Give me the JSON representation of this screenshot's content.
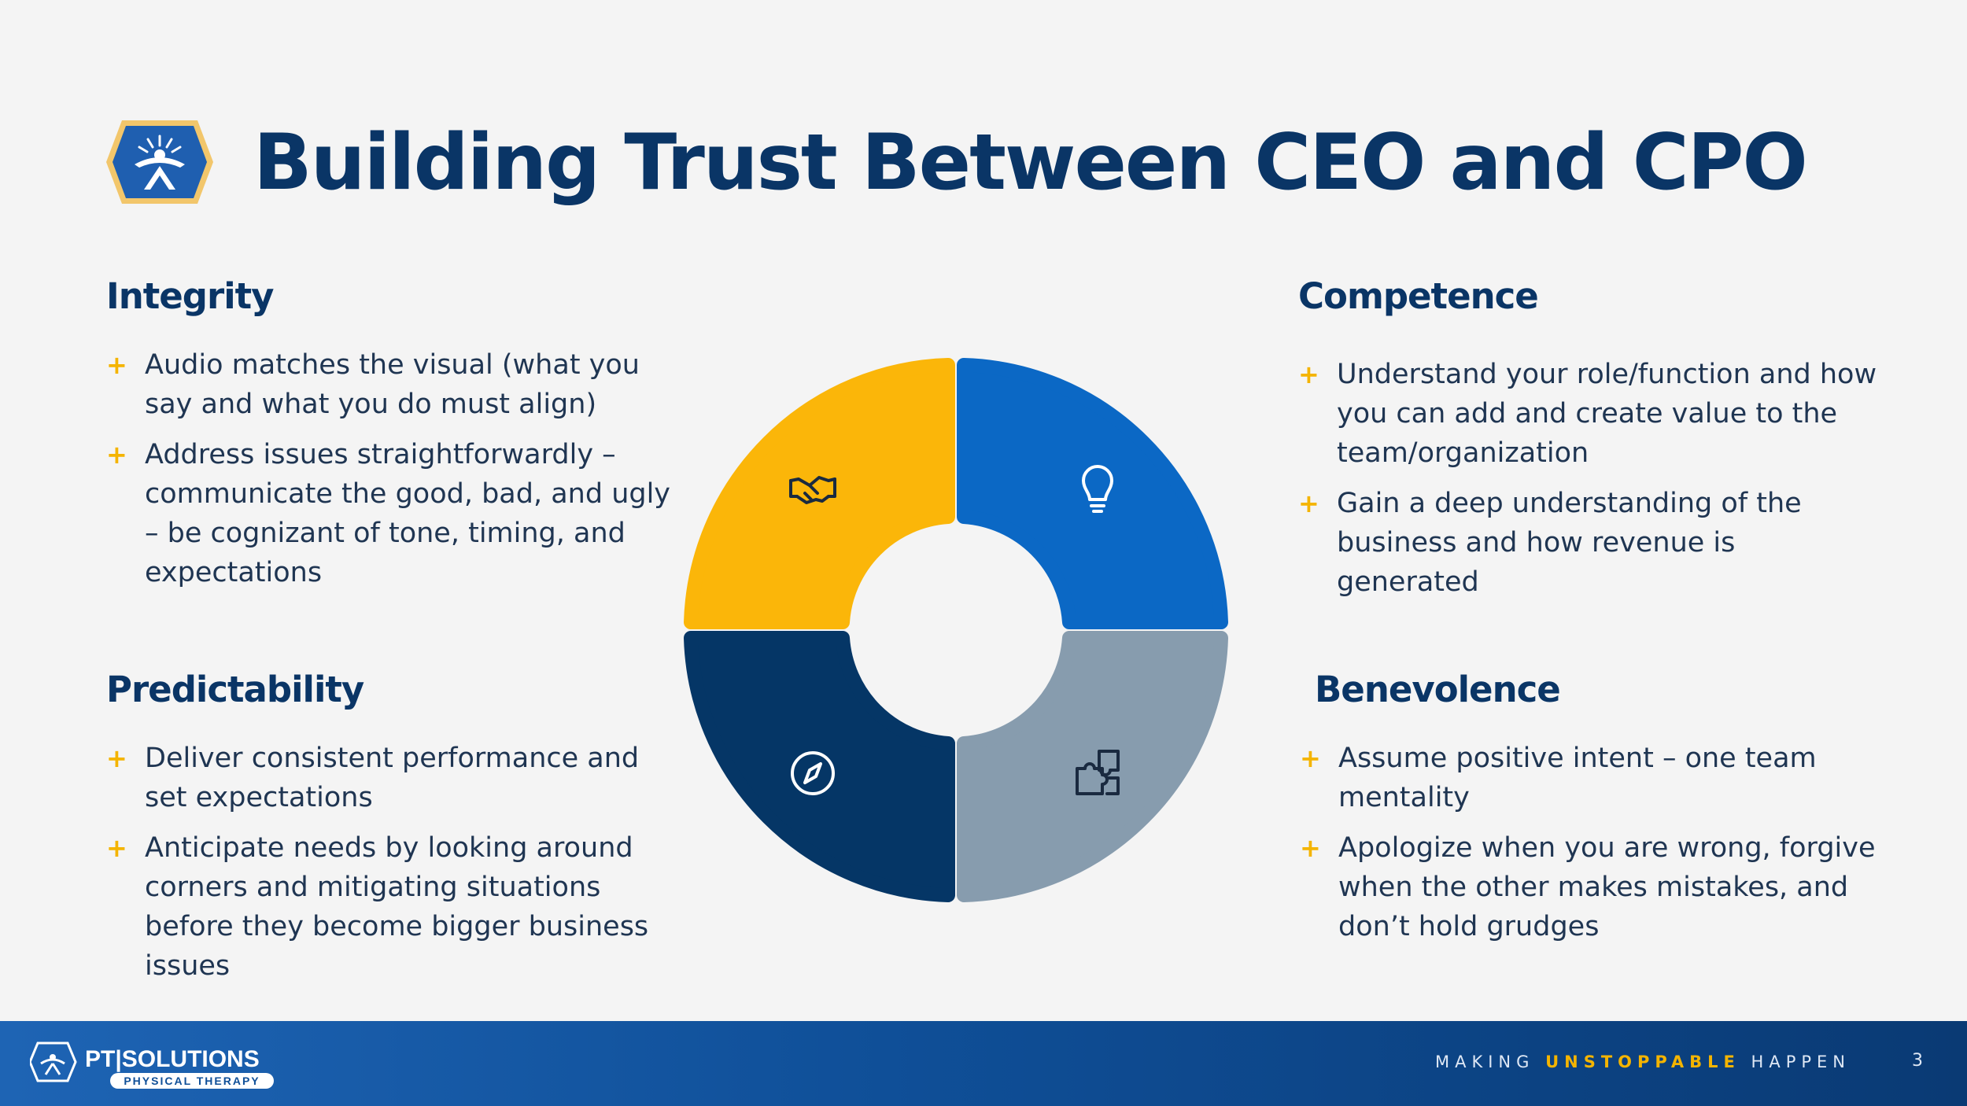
{
  "slide": {
    "title": "Building Trust Between CEO and CPO",
    "page_number": "3"
  },
  "sections": {
    "integrity": {
      "heading": "Integrity",
      "bullets": [
        "Audio matches the visual (what you say and what you do must align)",
        "Address issues straightforwardly – communicate the good, bad, and ugly – be cognizant of tone, timing, and expectations"
      ]
    },
    "competence": {
      "heading": "Competence",
      "bullets": [
        "Understand your role/function and how you can add and create value to the team/organization",
        "Gain a deep understanding of the business and how revenue is generated"
      ]
    },
    "predictability": {
      "heading": "Predictability",
      "bullets": [
        "Deliver consistent performance and set expectations",
        "Anticipate needs by looking around corners and mitigating situations before they become bigger business issues"
      ]
    },
    "benevolence": {
      "heading": "Benevolence",
      "bullets": [
        "Assume positive intent – one team mentality",
        "Apologize when you are wrong, forgive when the other makes mistakes, and don’t hold grudges"
      ]
    }
  },
  "bullet_marker": "+",
  "wheel": {
    "segments": [
      {
        "quadrant": "top-left",
        "color": "#fbb609",
        "icon": "handshake-icon"
      },
      {
        "quadrant": "top-right",
        "color": "#0b68c5",
        "icon": "lightbulb-icon"
      },
      {
        "quadrant": "bottom-left",
        "color": "#053666",
        "icon": "compass-icon"
      },
      {
        "quadrant": "bottom-right",
        "color": "#879cae",
        "icon": "puzzle-icon"
      }
    ]
  },
  "footer": {
    "brand_name": "PT|SOLUTIONS",
    "brand_sub": "PHYSICAL THERAPY",
    "tagline_pre": "MAKING ",
    "tagline_accent": "UNSTOPPABLE",
    "tagline_post": " HAPPEN"
  },
  "colors": {
    "navy": "#0a3566",
    "gold": "#f4b400",
    "blue": "#0b68c5",
    "slate": "#879cae"
  }
}
